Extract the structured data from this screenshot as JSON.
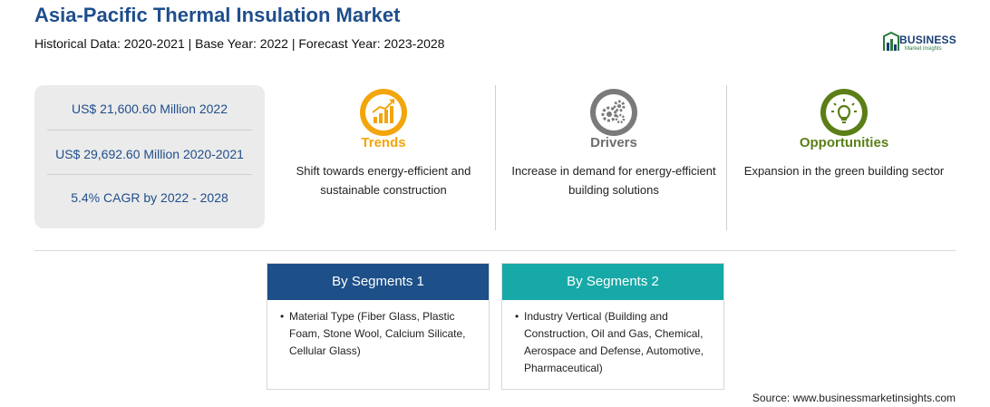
{
  "header": {
    "title": "Asia-Pacific Thermal Insulation Market",
    "subtitle": "Historical Data: 2020-2021 | Base Year: 2022 | Forecast Year: 2023-2028"
  },
  "logo": {
    "word": "BUSINESS",
    "sub": "Market Insights"
  },
  "stats": [
    "US$ 21,600.60 Million 2022",
    "US$ 29,692.60 Million 2020-2021",
    "5.4% CAGR by 2022 - 2028"
  ],
  "columns": [
    {
      "title": "Trends",
      "text": "Shift towards energy-efficient and sustainable construction",
      "color": "#f2a60c",
      "icon": "rising-chart-icon"
    },
    {
      "title": "Drivers",
      "text": "Increase in demand for energy-efficient building solutions",
      "color": "#7a7a7a",
      "icon": "gears-icon"
    },
    {
      "title": "Opportunities",
      "text": "Expansion in the green building sector",
      "color": "#5b7f16",
      "icon": "lightbulb-icon"
    }
  ],
  "segments": [
    {
      "heading": "By Segments 1",
      "bullet": "•",
      "text": "Material Type (Fiber Glass, Plastic Foam, Stone Wool, Calcium Silicate, Cellular Glass)",
      "color": "#1d4f88"
    },
    {
      "heading": "By Segments 2",
      "bullet": "•",
      "text": "Industry Vertical (Building and Construction, Oil and Gas, Chemical, Aerospace and Defense, Automotive, Pharmaceutical)",
      "color": "#17a9a7"
    }
  ],
  "source": "Source: www.businessmarketinsights.com"
}
